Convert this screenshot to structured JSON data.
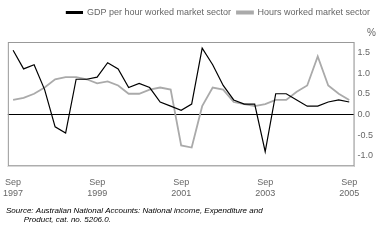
{
  "chart_data": {
    "type": "line",
    "y_label": "%",
    "annotations": [
      "Source: Australian National Accounts: National income, Expenditure and\n        Product, cat. no. 5206.0."
    ],
    "categories": [
      "Sep\n1997",
      null,
      null,
      null,
      null,
      null,
      null,
      null,
      "Sep\n1999",
      null,
      null,
      null,
      null,
      null,
      null,
      null,
      "Sep\n2001",
      null,
      null,
      null,
      null,
      null,
      null,
      null,
      "Sep\n2003",
      null,
      null,
      null,
      null,
      null,
      null,
      null,
      "Sep\n2005"
    ],
    "series": [
      {
        "name": "GDP per hour worked market sector",
        "color": "#000000",
        "values": [
          1.55,
          1.1,
          1.2,
          0.6,
          -0.3,
          -0.45,
          0.85,
          0.85,
          0.9,
          1.25,
          1.1,
          0.65,
          0.75,
          0.65,
          0.3,
          0.2,
          0.1,
          0.25,
          1.6,
          1.2,
          0.7,
          0.35,
          0.25,
          0.25,
          -0.9,
          0.5,
          0.5,
          0.35,
          0.2,
          0.2,
          0.3,
          0.35,
          0.3
        ]
      },
      {
        "name": "Hours worked market sector",
        "color": "#aaaaaa",
        "values": [
          0.35,
          0.4,
          0.5,
          0.65,
          0.85,
          0.9,
          0.9,
          0.85,
          0.75,
          0.8,
          0.7,
          0.5,
          0.5,
          0.6,
          0.65,
          0.6,
          -0.75,
          -0.8,
          0.2,
          0.65,
          0.6,
          0.3,
          0.25,
          0.2,
          0.25,
          0.35,
          0.35,
          0.55,
          0.7,
          1.4,
          0.7,
          0.5,
          0.35
        ]
      }
    ],
    "ylim": [
      -1.25,
      1.75
    ],
    "yticks": [
      {
        "value": -1.0,
        "label": "-1.0"
      },
      {
        "value": -0.5,
        "label": "-0.5"
      },
      {
        "value": 0.0,
        "label": "0.0"
      },
      {
        "value": 0.5,
        "label": "0.5"
      },
      {
        "value": 1.0,
        "label": "1.0"
      },
      {
        "value": 1.5,
        "label": "1.5"
      }
    ],
    "grid": false,
    "legend": "upper right"
  }
}
